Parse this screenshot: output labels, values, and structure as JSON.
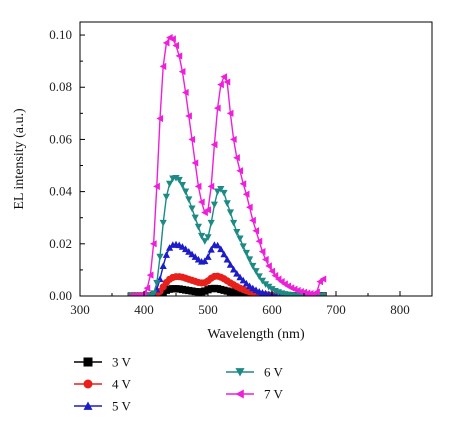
{
  "chart_data": {
    "type": "line",
    "title": "",
    "xlabel": "Wavelength (nm)",
    "ylabel": "EL intensity (a.u.)",
    "xlim": [
      300,
      850
    ],
    "ylim": [
      0,
      0.105
    ],
    "xticks": [
      300,
      400,
      500,
      600,
      700,
      800
    ],
    "yticks": [
      "0.00",
      "0.02",
      "0.04",
      "0.06",
      "0.08",
      "0.10"
    ],
    "grid": false,
    "legend_placement": "below",
    "x_start": 380,
    "x_step": 5,
    "series": [
      {
        "name": "3 V",
        "color": "#000000",
        "marker": "square",
        "values": [
          0,
          0,
          0,
          0,
          0,
          0,
          0,
          0.0001,
          0.0003,
          0.0008,
          0.0015,
          0.0022,
          0.0026,
          0.0028,
          0.0028,
          0.0027,
          0.0025,
          0.0023,
          0.0021,
          0.0019,
          0.0017,
          0.0016,
          0.0016,
          0.0019,
          0.0024,
          0.0028,
          0.0029,
          0.0028,
          0.0025,
          0.0022,
          0.0019,
          0.0016,
          0.0013,
          0.0011,
          0.0009,
          0.0008,
          0.0006,
          0.0005,
          0.0004,
          0.0003,
          0.0002,
          0.0002,
          0.0001,
          0.0001,
          0.0001,
          0.0001,
          0.0001,
          0.0001,
          0.0001,
          0.0001,
          0.0001,
          0.0001,
          0.0001,
          0.0001,
          0.0001,
          0.0001,
          0.0001,
          0.0001,
          0.0001,
          0.0001,
          0.0001
        ]
      },
      {
        "name": "4 V",
        "color": "#e8201b",
        "marker": "circle",
        "values": [
          0,
          0,
          0,
          0,
          0,
          0,
          0,
          0.0002,
          0.0007,
          0.0018,
          0.0035,
          0.0052,
          0.0064,
          0.0071,
          0.0074,
          0.0074,
          0.0072,
          0.0068,
          0.0064,
          0.006,
          0.0056,
          0.0052,
          0.005,
          0.0051,
          0.0058,
          0.0068,
          0.0075,
          0.0076,
          0.0072,
          0.0066,
          0.0058,
          0.005,
          0.0043,
          0.0036,
          0.003,
          0.0025,
          0.002,
          0.0016,
          0.0013,
          0.001,
          0.0008,
          0.0006,
          0.0005,
          0.0004,
          0.0003,
          0.0002,
          0.0002,
          0.0001,
          0.0001,
          0.0001,
          0.0001,
          0.0001,
          0.0001,
          0.0001,
          0.0001,
          0.0001,
          0.0001,
          0.0001,
          0.0001,
          0.0001,
          0.0001
        ]
      },
      {
        "name": "5 V",
        "color": "#1c1cc9",
        "marker": "triangle-up",
        "values": [
          0,
          0,
          0,
          0,
          0,
          0,
          0,
          0.0006,
          0.0025,
          0.0065,
          0.0115,
          0.0158,
          0.0185,
          0.0196,
          0.0198,
          0.0195,
          0.0189,
          0.018,
          0.017,
          0.016,
          0.015,
          0.014,
          0.0132,
          0.0134,
          0.015,
          0.0178,
          0.0196,
          0.0194,
          0.018,
          0.016,
          0.014,
          0.012,
          0.0102,
          0.0086,
          0.0072,
          0.006,
          0.0048,
          0.0038,
          0.003,
          0.0023,
          0.0017,
          0.0013,
          0.001,
          0.0007,
          0.0005,
          0.0004,
          0.0003,
          0.0002,
          0.0001,
          0.0001,
          0.0001,
          0.0001,
          0.0001,
          0.0001,
          0.0001,
          0.0001,
          0.0001,
          0.0001,
          0.0001,
          0.0001,
          0.0001
        ]
      },
      {
        "name": "6 V",
        "color": "#1d8a86",
        "marker": "triangle-down",
        "values": [
          0,
          0,
          0,
          0,
          0,
          0,
          0,
          0.001,
          0.005,
          0.015,
          0.028,
          0.038,
          0.043,
          0.045,
          0.0452,
          0.0445,
          0.0425,
          0.04,
          0.037,
          0.0335,
          0.03,
          0.0265,
          0.023,
          0.021,
          0.0225,
          0.028,
          0.035,
          0.04,
          0.041,
          0.0395,
          0.0355,
          0.032,
          0.028,
          0.0245,
          0.022,
          0.019,
          0.0165,
          0.014,
          0.0115,
          0.0095,
          0.0075,
          0.0058,
          0.0045,
          0.0035,
          0.0026,
          0.0019,
          0.0014,
          0.001,
          0.0007,
          0.0005,
          0.0003,
          0.0002,
          0.0001,
          0.0001,
          0.0001,
          0.0001,
          0.0001,
          0.0001,
          0.0001,
          0.0001,
          0.0001
        ]
      },
      {
        "name": "7 V",
        "color": "#ee1fd8",
        "marker": "triangle-left",
        "values": [
          0,
          0,
          0.0001,
          0.0003,
          0.001,
          0.003,
          0.008,
          0.02,
          0.042,
          0.068,
          0.088,
          0.097,
          0.099,
          0.0985,
          0.096,
          0.092,
          0.086,
          0.078,
          0.069,
          0.06,
          0.051,
          0.042,
          0.036,
          0.032,
          0.033,
          0.042,
          0.058,
          0.072,
          0.081,
          0.084,
          0.082,
          0.07,
          0.06,
          0.053,
          0.048,
          0.043,
          0.039,
          0.034,
          0.029,
          0.025,
          0.021,
          0.017,
          0.014,
          0.0115,
          0.0095,
          0.0078,
          0.0065,
          0.0055,
          0.0046,
          0.0038,
          0.0031,
          0.0026,
          0.0021,
          0.0017,
          0.0014,
          0.0011,
          0.0009,
          0.0007,
          0.0015,
          0.0055,
          0.0065
        ]
      }
    ]
  }
}
